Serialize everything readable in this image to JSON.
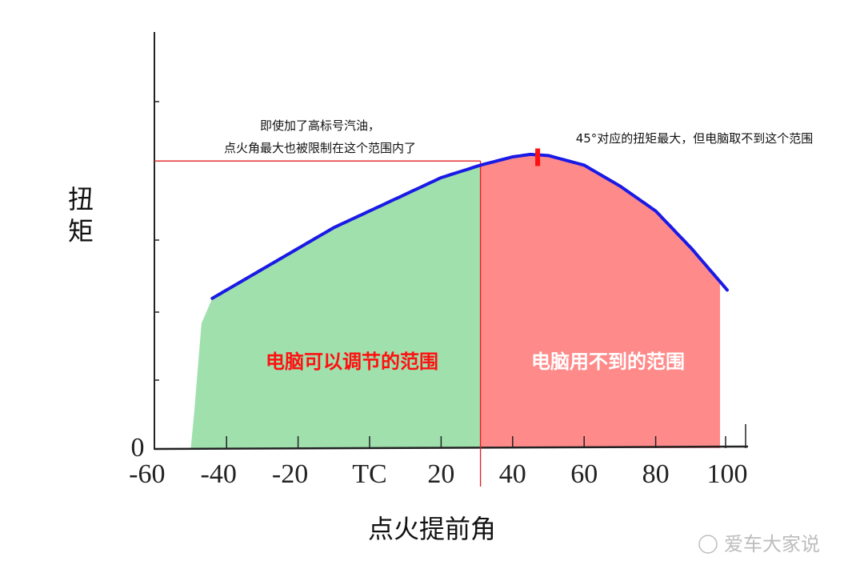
{
  "chart_data": {
    "type": "area",
    "title": "",
    "xlabel": "点火提前角",
    "ylabel": "扭矩",
    "x_ticks": [
      "-60",
      "-40",
      "-20",
      "TC",
      "20",
      "40",
      "60",
      "80",
      "100"
    ],
    "x_tick_values": [
      -60,
      -40,
      -20,
      0,
      20,
      40,
      60,
      80,
      100
    ],
    "y_zero_label": "0",
    "xlim": [
      -60,
      105
    ],
    "ylim": [
      0,
      100
    ],
    "series": [
      {
        "name": "torque",
        "color": "#1a1ae6",
        "x": [
          -44,
          -30,
          -20,
          -10,
          0,
          10,
          20,
          31,
          40,
          45,
          50,
          60,
          70,
          80,
          90,
          100
        ],
        "y": [
          36,
          43,
          48,
          53,
          57,
          61,
          65,
          68,
          70,
          70.6,
          70.3,
          68,
          63,
          57,
          48,
          38
        ]
      }
    ],
    "regions": [
      {
        "label": "电脑可以调节的范围",
        "from": -50,
        "to": 31,
        "fill": "#9fe0ad",
        "text_color": "#ff1010"
      },
      {
        "label": "电脑用不到的范围",
        "from": 31,
        "to": 98,
        "fill": "#ff8a8a",
        "text_color": "#ffffff"
      }
    ],
    "limit_x": 31,
    "limit_y": 69,
    "peak_x": 47,
    "annotations": [
      {
        "text": "即使加了高标号汽油，",
        "id": "a1"
      },
      {
        "text": "点火角最大也被限制在这个范围内了",
        "id": "a2"
      },
      {
        "text": "45°对应的扭矩最大，但电脑取不到这个范围",
        "id": "a3"
      }
    ]
  },
  "watermark": "爱车大家说"
}
